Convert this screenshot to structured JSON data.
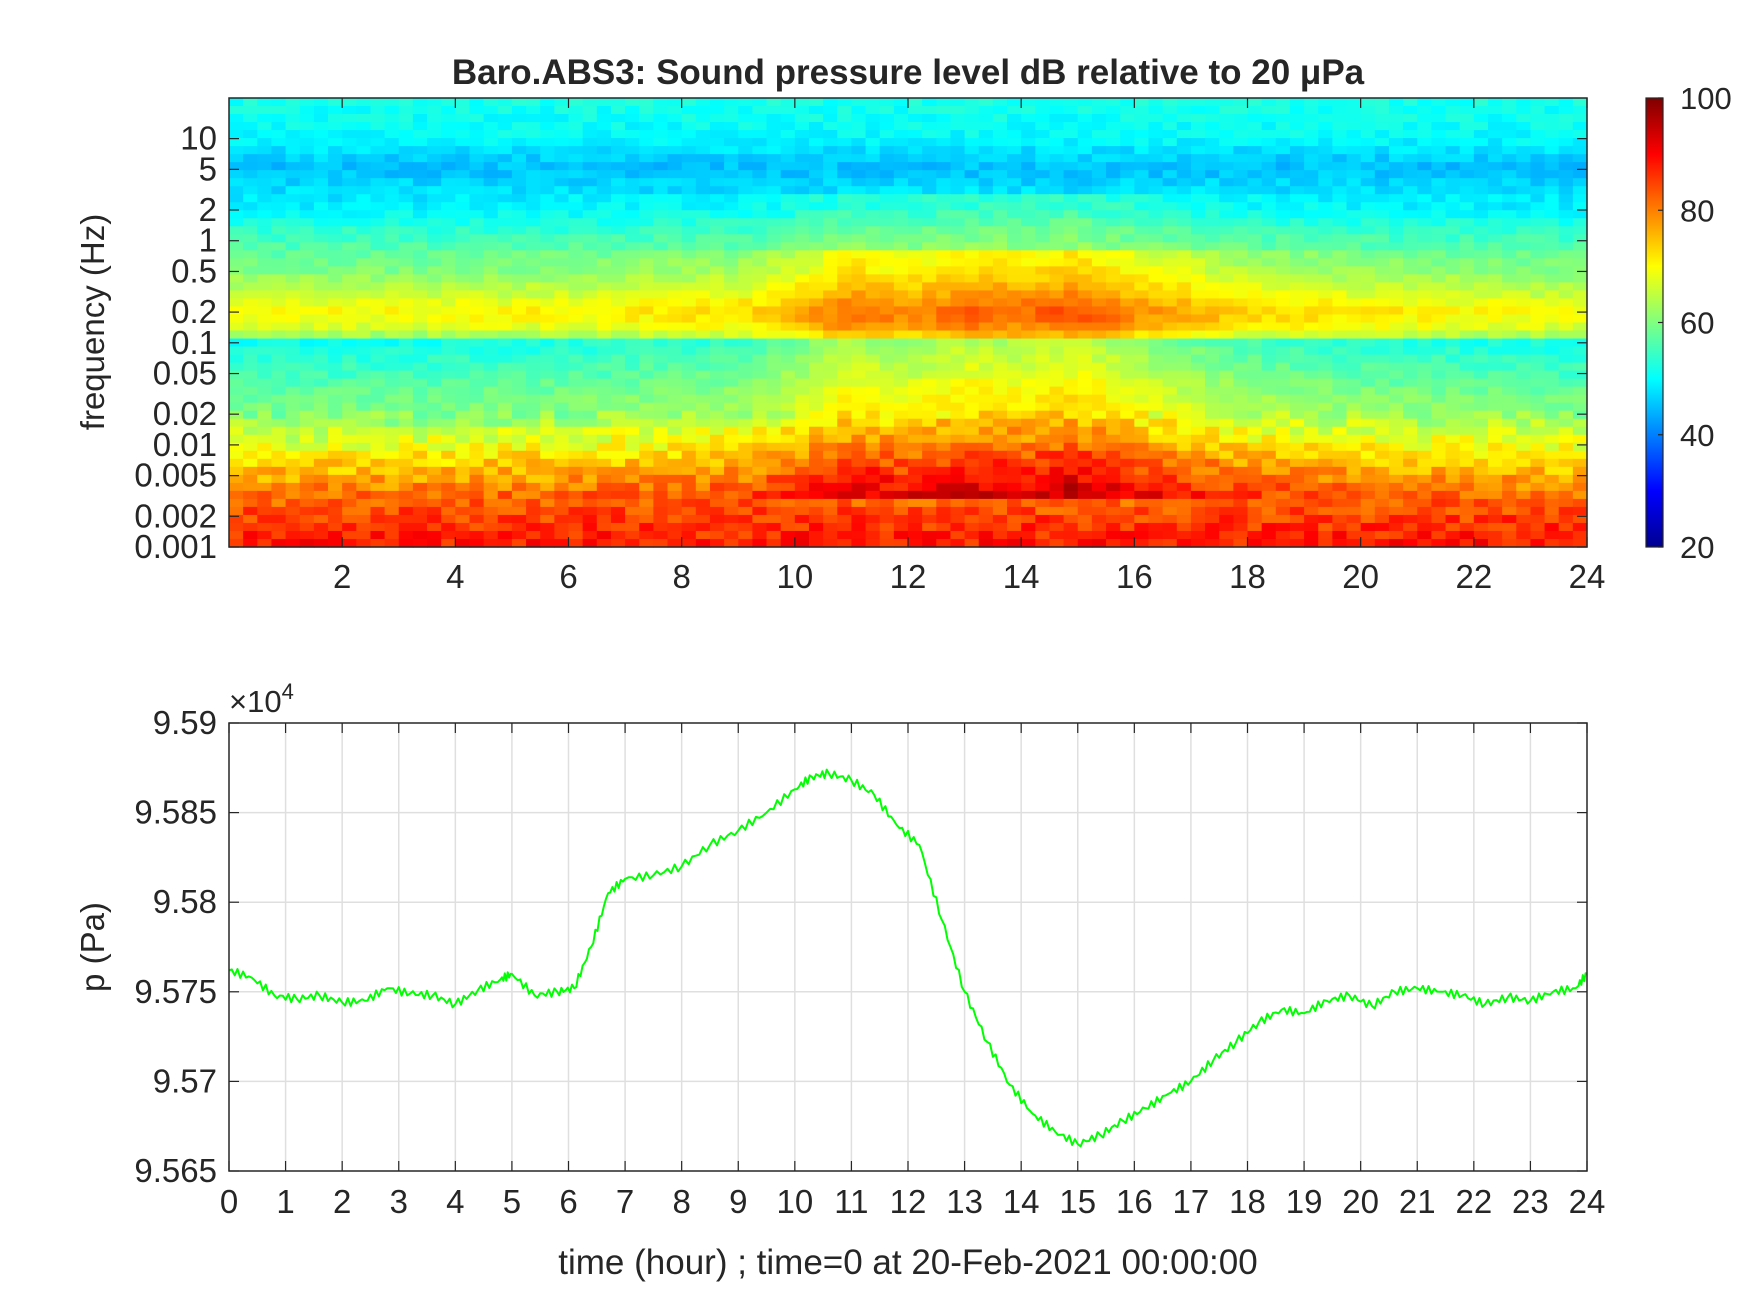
{
  "chart_data": [
    {
      "type": "heatmap",
      "title": "Baro.ABS3: Sound pressure level dB relative to 20 μPa",
      "xlabel": "",
      "ylabel": "frequency (Hz)",
      "xlim": [
        0,
        24
      ],
      "ylim": [
        0.001,
        25
      ],
      "yscale": "log",
      "x_ticks": [
        2,
        4,
        6,
        8,
        10,
        12,
        14,
        16,
        18,
        20,
        22,
        24
      ],
      "x_tick_labels": [
        "2",
        "4",
        "6",
        "8",
        "10",
        "12",
        "14",
        "16",
        "18",
        "20",
        "22",
        "24"
      ],
      "y_ticks": [
        0.001,
        0.002,
        0.005,
        0.01,
        0.02,
        0.05,
        0.1,
        0.2,
        0.5,
        1,
        2,
        5,
        10
      ],
      "y_tick_labels": [
        "0.001",
        "0.002",
        "0.005",
        "0.01",
        "0.02",
        "0.05",
        "0.1",
        "0.2",
        "0.5",
        "1",
        "2",
        "5",
        "10"
      ],
      "grid": false,
      "colormap": "jet",
      "colorbar": {
        "min": 20,
        "max": 100,
        "ticks": [
          20,
          40,
          60,
          80,
          100
        ],
        "tick_labels": [
          "20",
          "40",
          "60",
          "80",
          "100"
        ]
      },
      "z_profile": {
        "freq": [
          0.001,
          0.002,
          0.005,
          0.01,
          0.02,
          0.05,
          0.1,
          0.12,
          0.15,
          0.2,
          0.3,
          0.5,
          1,
          2,
          5,
          10,
          25
        ],
        "db": [
          88,
          85,
          76,
          68,
          60,
          55,
          51,
          63,
          68,
          70,
          65,
          60,
          55,
          49,
          45,
          50,
          52
        ]
      },
      "activity": {
        "hours": [
          0,
          3,
          6,
          9,
          10,
          11,
          12,
          13,
          14,
          15,
          16,
          17,
          18,
          20,
          22,
          24
        ],
        "extra_db": [
          0,
          0,
          1,
          3,
          7,
          12,
          10,
          13,
          12,
          14,
          10,
          7,
          4,
          2,
          1,
          0
        ]
      }
    },
    {
      "type": "line",
      "title": "",
      "xlabel": "time (hour) ; time=0 at 20-Feb-2021 00:00:00",
      "ylabel": "p (Pa)",
      "exponent_label": "×10",
      "exponent_power": "4",
      "xlim": [
        0,
        24
      ],
      "ylim": [
        9.565,
        9.59
      ],
      "x_ticks": [
        0,
        1,
        2,
        3,
        4,
        5,
        6,
        7,
        8,
        9,
        10,
        11,
        12,
        13,
        14,
        15,
        16,
        17,
        18,
        19,
        20,
        21,
        22,
        23,
        24
      ],
      "x_tick_labels": [
        "0",
        "1",
        "2",
        "3",
        "4",
        "5",
        "6",
        "7",
        "8",
        "9",
        "10",
        "11",
        "12",
        "13",
        "14",
        "15",
        "16",
        "17",
        "18",
        "19",
        "20",
        "21",
        "22",
        "23",
        "24"
      ],
      "y_ticks": [
        9.565,
        9.57,
        9.575,
        9.58,
        9.585,
        9.59
      ],
      "y_tick_labels": [
        "9.565",
        "9.57",
        "9.575",
        "9.58",
        "9.585",
        "9.59"
      ],
      "grid": true,
      "line_color": "#00ff00",
      "series": [
        {
          "x": [
            0,
            0.4,
            0.8,
            1.2,
            1.6,
            2.0,
            2.4,
            2.8,
            3.2,
            3.6,
            4.0,
            4.4,
            4.8,
            5.0,
            5.4,
            5.8,
            6.1,
            6.4,
            6.7,
            7.0,
            7.5,
            8.0,
            8.5,
            9.0,
            9.5,
            10.0,
            10.3,
            10.6,
            11.0,
            11.4,
            11.8,
            12.2,
            12.6,
            13.0,
            13.4,
            13.8,
            14.2,
            14.6,
            15.0,
            15.4,
            15.8,
            16.2,
            16.6,
            17.0,
            17.4,
            17.8,
            18.2,
            18.6,
            19.0,
            19.4,
            19.8,
            20.2,
            20.6,
            21.0,
            21.4,
            21.8,
            22.2,
            22.6,
            23.0,
            23.4,
            23.8,
            24.0
          ],
          "y": [
            9.5762,
            9.5758,
            9.5748,
            9.5746,
            9.5748,
            9.5744,
            9.5745,
            9.5752,
            9.5749,
            9.5748,
            9.5743,
            9.5751,
            9.5757,
            9.576,
            9.5748,
            9.575,
            9.5752,
            9.5775,
            9.5805,
            9.5813,
            9.5815,
            9.582,
            9.5832,
            9.584,
            9.585,
            9.5863,
            9.587,
            9.5872,
            9.5868,
            9.586,
            9.5843,
            9.5832,
            9.579,
            9.575,
            9.5722,
            9.5698,
            9.5682,
            9.5672,
            9.5665,
            9.567,
            9.5678,
            9.5685,
            9.5693,
            9.57,
            9.5712,
            9.5722,
            9.5733,
            9.574,
            9.5738,
            9.5745,
            9.5748,
            9.5742,
            9.575,
            9.5752,
            9.575,
            9.5748,
            9.5743,
            9.5747,
            9.5745,
            9.575,
            9.5752,
            9.576
          ]
        }
      ]
    }
  ]
}
